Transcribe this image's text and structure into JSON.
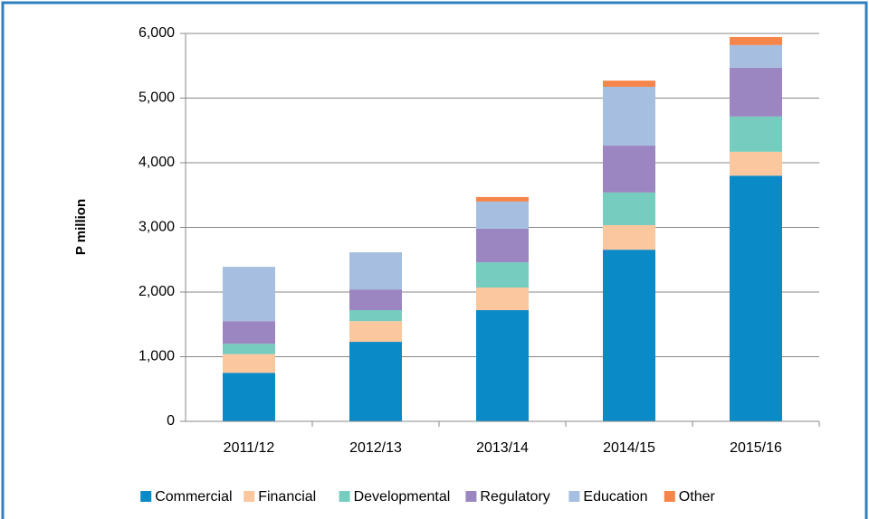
{
  "chart_data": {
    "type": "stacked_bar",
    "y_label": "P  million",
    "categories": [
      "2011/12",
      "2012/13",
      "2013/14",
      "2014/15",
      "2015/16"
    ],
    "series": [
      {
        "name": "Commercial",
        "color": "#0a8ac7",
        "values": [
          750,
          1230,
          1720,
          2655,
          3800
        ]
      },
      {
        "name": "Financial",
        "color": "#fac79e",
        "values": [
          290,
          320,
          350,
          380,
          370
        ]
      },
      {
        "name": "Developmental",
        "color": "#76cdbf",
        "values": [
          160,
          170,
          390,
          505,
          545
        ]
      },
      {
        "name": "Regulatory",
        "color": "#9b86c2",
        "values": [
          350,
          320,
          520,
          725,
          755
        ]
      },
      {
        "name": "Education",
        "color": "#a6bfe0",
        "values": [
          840,
          575,
          420,
          910,
          350
        ]
      },
      {
        "name": "Other",
        "color": "#f5854a",
        "values": [
          0,
          0,
          70,
          95,
          125
        ]
      }
    ],
    "ylim": [
      0,
      6000
    ],
    "yticks": [
      0,
      {
        "value": 1000,
        "label": "1,000"
      },
      {
        "value": 2000,
        "label": "2,000"
      },
      {
        "value": 3000,
        "label": "3,000"
      },
      {
        "value": 4000,
        "label": "4,000"
      },
      {
        "value": 5000,
        "label": "5,000"
      },
      {
        "value": 6000,
        "label": "6,000"
      }
    ],
    "grid": true
  }
}
